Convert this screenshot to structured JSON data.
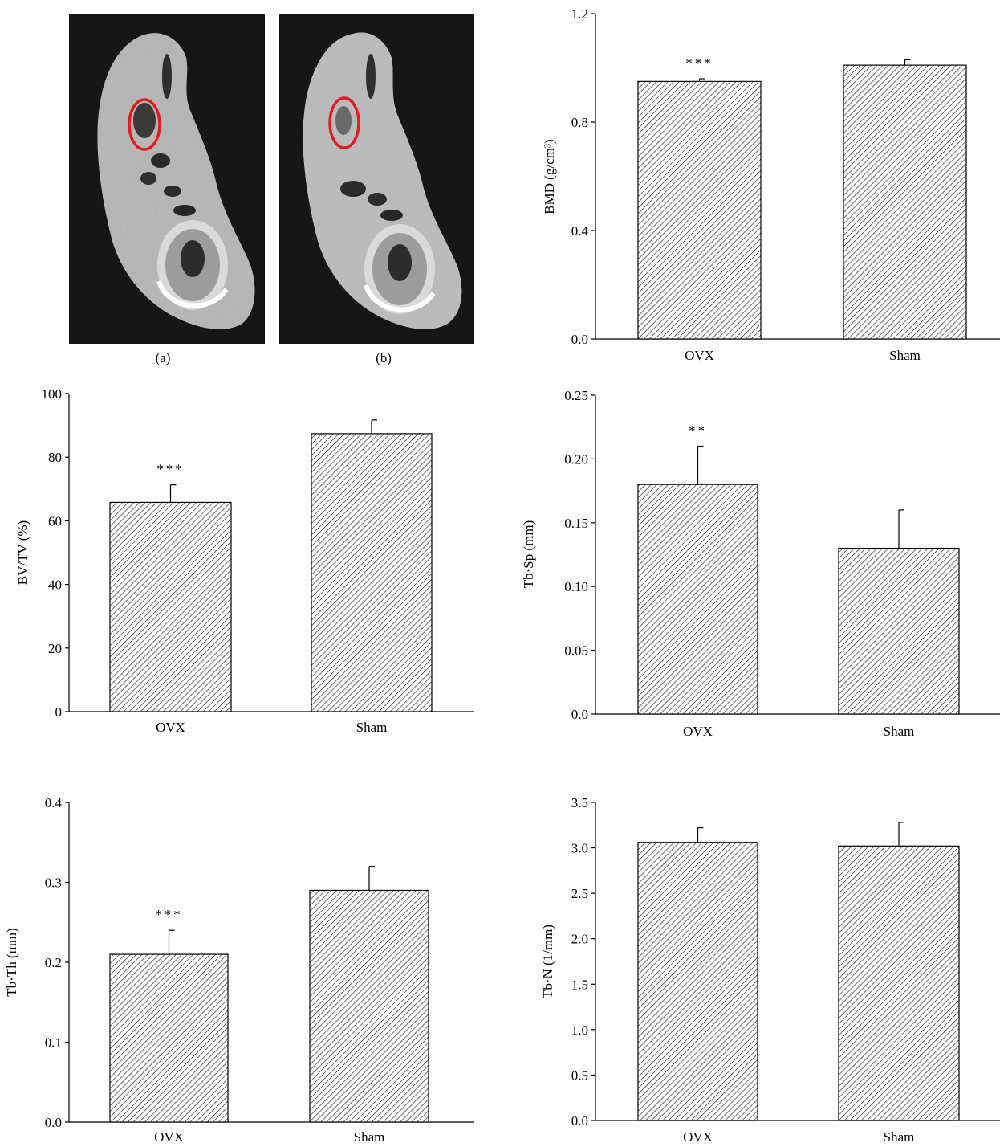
{
  "images": {
    "panel_a": {
      "label": "(a)"
    },
    "panel_b": {
      "label": "(b)"
    }
  },
  "chart_data": [
    {
      "type": "bar",
      "categories": [
        "OVX",
        "Sham"
      ],
      "values": [
        0.95,
        1.01
      ],
      "errors": [
        0.01,
        0.02
      ],
      "significance": [
        "***",
        ""
      ],
      "ylabel": "BMD (g/cm³)",
      "ylim": [
        0,
        1.2
      ],
      "yticks": [
        0.0,
        0.4,
        0.8,
        1.2
      ],
      "ytick_labels": [
        "0.0",
        "0.4",
        "0.8",
        "1.2"
      ],
      "bar_pattern": "diagonal-hatch"
    },
    {
      "type": "bar",
      "categories": [
        "OVX",
        "Sham"
      ],
      "values": [
        65.8,
        87.4
      ],
      "errors": [
        5.5,
        4.3
      ],
      "significance": [
        "***",
        ""
      ],
      "ylabel": "BV/TV (%)",
      "ylim": [
        0,
        100
      ],
      "yticks": [
        0,
        20,
        40,
        60,
        80,
        100
      ],
      "ytick_labels": [
        "0",
        "20",
        "40",
        "60",
        "80",
        "100"
      ],
      "bar_pattern": "diagonal-hatch"
    },
    {
      "type": "bar",
      "categories": [
        "OVX",
        "Sham"
      ],
      "values": [
        0.18,
        0.13
      ],
      "errors": [
        0.03,
        0.03
      ],
      "significance": [
        "**",
        ""
      ],
      "ylabel": "Tb·Sp (mm)",
      "ylim": [
        0,
        0.25
      ],
      "yticks": [
        0.0,
        0.05,
        0.1,
        0.15,
        0.2,
        0.25
      ],
      "ytick_labels": [
        "0.0",
        "0.05",
        "0.10",
        "0.15",
        "0.20",
        "0.25"
      ],
      "bar_pattern": "diagonal-hatch"
    },
    {
      "type": "bar",
      "categories": [
        "OVX",
        "Sham"
      ],
      "values": [
        0.21,
        0.29
      ],
      "errors": [
        0.03,
        0.03
      ],
      "significance": [
        "***",
        ""
      ],
      "ylabel": "Tb·Th (mm)",
      "ylim": [
        0,
        0.4
      ],
      "yticks": [
        0.0,
        0.1,
        0.2,
        0.3,
        0.4
      ],
      "ytick_labels": [
        "0.0",
        "0.1",
        "0.2",
        "0.3",
        "0.4"
      ],
      "bar_pattern": "diagonal-hatch"
    },
    {
      "type": "bar",
      "categories": [
        "OVX",
        "Sham"
      ],
      "values": [
        3.06,
        3.02
      ],
      "errors": [
        0.16,
        0.26
      ],
      "significance": [
        "",
        ""
      ],
      "ylabel": "Tb·N (1/mm)",
      "ylim": [
        0,
        3.5
      ],
      "yticks": [
        0.0,
        0.5,
        1.0,
        1.5,
        2.0,
        2.5,
        3.0,
        3.5
      ],
      "ytick_labels": [
        "0.0",
        "0.5",
        "1.0",
        "1.5",
        "2.0",
        "2.5",
        "3.0",
        "3.5"
      ],
      "bar_pattern": "diagonal-hatch"
    }
  ]
}
